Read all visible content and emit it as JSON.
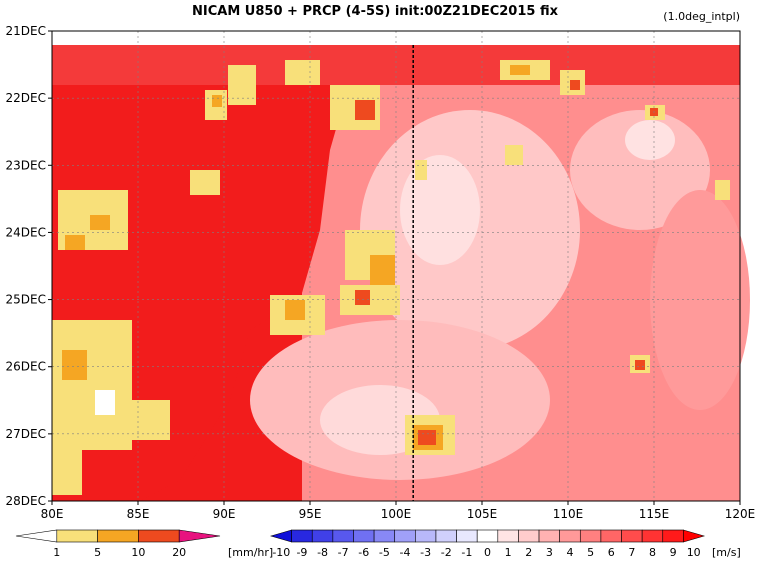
{
  "chart_data": {
    "type": "heatmap",
    "title": "NICAM  U850 + PRCP (4-5S) init:00Z21DEC2015 fix",
    "subtitle": "(1.0deg_intpl)",
    "x_ticks": [
      "80E",
      "85E",
      "90E",
      "95E",
      "100E",
      "105E",
      "110E",
      "115E",
      "120E"
    ],
    "y_ticks": [
      "21DEC",
      "22DEC",
      "23DEC",
      "24DEC",
      "25DEC",
      "26DEC",
      "27DEC",
      "28DEC"
    ],
    "xlim": [
      80,
      120
    ],
    "ylim": [
      "21DEC",
      "28DEC"
    ],
    "grid": true,
    "reference_line_lon": 101,
    "precip_legend": {
      "ticks": [
        "1",
        "5",
        "10",
        "20"
      ],
      "unit": "[mm/hr]",
      "colors": [
        "#ffffff",
        "#f8e07a",
        "#f5a623",
        "#ee4a1f",
        "#e8127f"
      ]
    },
    "wind_legend": {
      "ticks": [
        "-10",
        "-9",
        "-8",
        "-7",
        "-6",
        "-5",
        "-4",
        "-3",
        "-2",
        "-1",
        "0",
        "1",
        "2",
        "3",
        "4",
        "5",
        "6",
        "7",
        "8",
        "9",
        "10"
      ],
      "unit": "[m/s]",
      "colors": [
        "#1010d8",
        "#2828e0",
        "#4040e8",
        "#5858ee",
        "#7070f2",
        "#8888f6",
        "#a0a0f8",
        "#b8b8fa",
        "#d0d0fc",
        "#e8e8fe",
        "#ffffff",
        "#ffe4e4",
        "#ffcccc",
        "#ffb2b2",
        "#ff9999",
        "#ff8080",
        "#ff6666",
        "#ff4c4c",
        "#ff3333",
        "#ff1a1a",
        "#ff0000"
      ]
    }
  }
}
